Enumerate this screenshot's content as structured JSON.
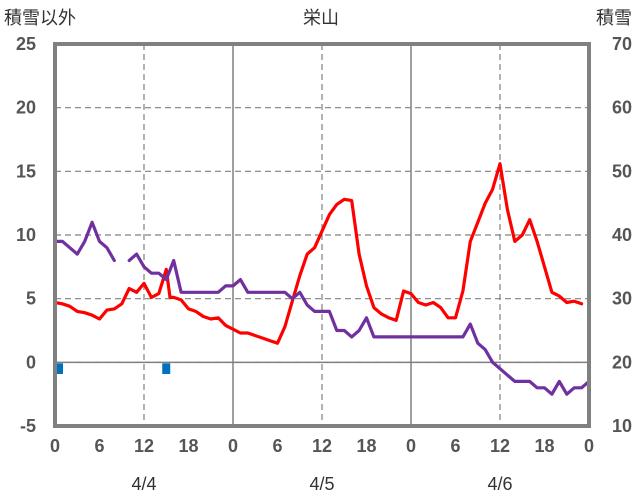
{
  "chart_data": {
    "type": "line",
    "title": "栄山",
    "y_left_label": "積雪以外",
    "y_right_label": "積雪",
    "y_left_ticks": [
      "25",
      "20",
      "15",
      "10",
      "5",
      "0",
      "-5"
    ],
    "y_right_ticks": [
      "70",
      "60",
      "50",
      "40",
      "30",
      "20",
      "10"
    ],
    "x_ticks": [
      "0",
      "6",
      "12",
      "18",
      "0",
      "6",
      "12",
      "18",
      "0",
      "6",
      "12",
      "18",
      "0"
    ],
    "date_labels": [
      "4/4",
      "4/5",
      "4/6"
    ],
    "ylim_left": [
      -5,
      25
    ],
    "ylim_right": [
      10,
      70
    ],
    "xlim_hours": [
      0,
      72
    ],
    "series": [
      {
        "color": "#ff0000",
        "axis": "left",
        "points": [
          [
            0,
            4.7
          ],
          [
            1,
            4.6
          ],
          [
            2,
            4.4
          ],
          [
            3,
            4.0
          ],
          [
            4,
            3.9
          ],
          [
            5,
            3.7
          ],
          [
            6,
            3.4
          ],
          [
            7,
            4.1
          ],
          [
            8,
            4.2
          ],
          [
            9,
            4.6
          ],
          [
            10,
            5.8
          ],
          [
            11,
            5.5
          ],
          [
            12,
            6.2
          ],
          [
            13,
            5.1
          ],
          [
            14,
            5.4
          ],
          [
            15,
            7.3
          ],
          [
            15.5,
            5.1
          ],
          [
            16,
            5.1
          ],
          [
            17,
            4.9
          ],
          [
            18,
            4.2
          ],
          [
            19,
            4.0
          ],
          [
            20,
            3.6
          ],
          [
            21,
            3.4
          ],
          [
            22,
            3.5
          ],
          [
            23,
            2.9
          ],
          [
            24,
            2.6
          ],
          [
            25,
            2.3
          ],
          [
            26,
            2.3
          ],
          [
            27,
            2.1
          ],
          [
            28,
            1.9
          ],
          [
            29,
            1.7
          ],
          [
            30,
            1.5
          ],
          [
            31,
            2.8
          ],
          [
            32,
            4.8
          ],
          [
            33,
            6.8
          ],
          [
            34,
            8.5
          ],
          [
            35,
            9.0
          ],
          [
            36,
            10.3
          ],
          [
            37,
            11.6
          ],
          [
            38,
            12.4
          ],
          [
            39,
            12.8
          ],
          [
            40,
            12.7
          ],
          [
            41,
            8.5
          ],
          [
            42,
            6.0
          ],
          [
            43,
            4.3
          ],
          [
            44,
            3.8
          ],
          [
            45,
            3.5
          ],
          [
            46,
            3.3
          ],
          [
            47,
            5.6
          ],
          [
            48,
            5.4
          ],
          [
            49,
            4.7
          ],
          [
            50,
            4.5
          ],
          [
            51,
            4.7
          ],
          [
            52,
            4.3
          ],
          [
            53,
            3.5
          ],
          [
            54,
            3.5
          ],
          [
            55,
            5.6
          ],
          [
            56,
            9.5
          ],
          [
            57,
            11.0
          ],
          [
            58,
            12.5
          ],
          [
            59,
            13.6
          ],
          [
            60,
            15.6
          ],
          [
            61,
            12.0
          ],
          [
            62,
            9.5
          ],
          [
            63,
            10.0
          ],
          [
            64,
            11.2
          ],
          [
            65,
            9.5
          ],
          [
            66,
            7.5
          ],
          [
            67,
            5.5
          ],
          [
            68,
            5.2
          ],
          [
            69,
            4.7
          ],
          [
            70,
            4.8
          ],
          [
            71,
            4.6
          ]
        ]
      },
      {
        "color": "#7030a0",
        "axis": "left",
        "segments": [
          [
            [
              0,
              9.5
            ],
            [
              1,
              9.5
            ],
            [
              2,
              9.0
            ],
            [
              3,
              8.5
            ],
            [
              4,
              9.5
            ],
            [
              5,
              11.0
            ],
            [
              6,
              9.5
            ],
            [
              7,
              9.0
            ],
            [
              8,
              8.0
            ]
          ],
          [
            [
              10,
              8.0
            ],
            [
              11,
              8.5
            ],
            [
              12,
              7.5
            ],
            [
              13,
              7.0
            ],
            [
              14,
              7.0
            ],
            [
              15,
              6.5
            ],
            [
              16,
              8.0
            ],
            [
              17,
              5.5
            ],
            [
              18,
              5.5
            ],
            [
              19,
              5.5
            ],
            [
              20,
              5.5
            ],
            [
              21,
              5.5
            ],
            [
              22,
              5.5
            ],
            [
              23,
              6.0
            ],
            [
              24,
              6.0
            ],
            [
              25,
              6.5
            ],
            [
              26,
              5.5
            ],
            [
              27,
              5.5
            ],
            [
              28,
              5.5
            ],
            [
              29,
              5.5
            ],
            [
              30,
              5.5
            ],
            [
              31,
              5.5
            ],
            [
              32,
              5.0
            ],
            [
              33,
              5.5
            ],
            [
              34,
              4.5
            ],
            [
              35,
              4.0
            ],
            [
              36,
              4.0
            ],
            [
              37,
              4.0
            ],
            [
              38,
              2.5
            ],
            [
              39,
              2.5
            ],
            [
              40,
              2.0
            ],
            [
              41,
              2.5
            ],
            [
              42,
              3.5
            ],
            [
              43,
              2.0
            ],
            [
              44,
              2.0
            ],
            [
              45,
              2.0
            ],
            [
              46,
              2.0
            ],
            [
              47,
              2.0
            ],
            [
              48,
              2.0
            ],
            [
              49,
              2.0
            ],
            [
              50,
              2.0
            ],
            [
              51,
              2.0
            ],
            [
              52,
              2.0
            ],
            [
              53,
              2.0
            ],
            [
              54,
              2.0
            ],
            [
              55,
              2.0
            ],
            [
              56,
              3.0
            ],
            [
              57,
              1.5
            ],
            [
              58,
              1.0
            ],
            [
              59,
              0.0
            ],
            [
              60,
              -0.5
            ],
            [
              61,
              -1.0
            ],
            [
              62,
              -1.5
            ],
            [
              63,
              -1.5
            ],
            [
              64,
              -1.5
            ],
            [
              65,
              -2.0
            ],
            [
              66,
              -2.0
            ],
            [
              67,
              -2.5
            ],
            [
              68,
              -1.5
            ],
            [
              69,
              -2.5
            ],
            [
              70,
              -2.0
            ],
            [
              71,
              -2.0
            ],
            [
              72,
              -1.5
            ]
          ]
        ]
      },
      {
        "color": "#0070c0",
        "axis": "left",
        "type": "bar",
        "points": [
          [
            0,
            -0.6
          ],
          [
            15,
            -0.6
          ]
        ]
      }
    ]
  }
}
